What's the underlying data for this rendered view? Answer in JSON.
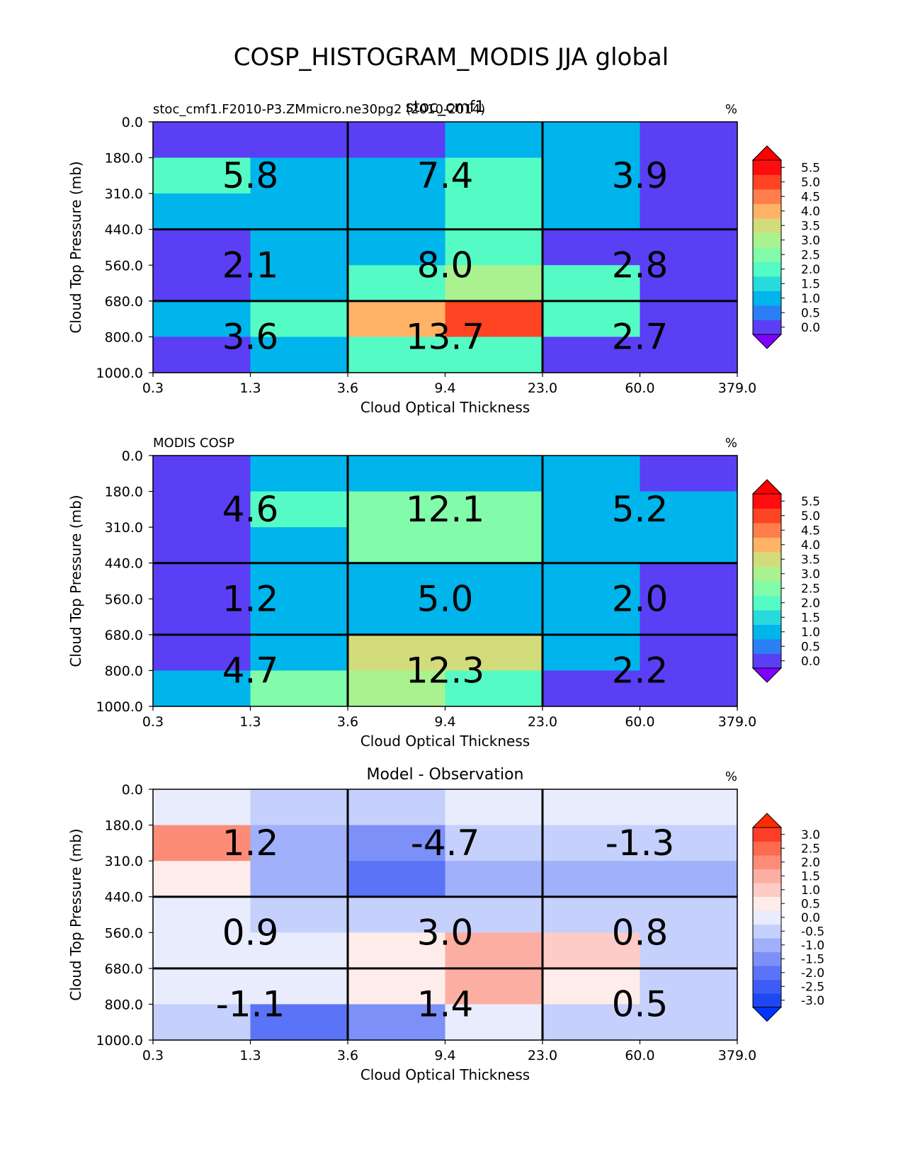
{
  "suptitle": "COSP_HISTOGRAM_MODIS JJA global",
  "chart_data": [
    {
      "type": "heatmap",
      "title_left": "stoc_cmf1.F2010-P3.ZMmicro.ne30pg2 (2010-2014)",
      "title_center": "stoc_cmf1",
      "title_right": "%",
      "xlabel": "Cloud Optical Thickness",
      "ylabel": "Cloud Top Pressure (mb)",
      "x_tick_labels": [
        "0.3",
        "1.3",
        "3.6",
        "9.4",
        "23.0",
        "60.0",
        "379.0"
      ],
      "y_tick_labels": [
        "0.0",
        "180.0",
        "310.0",
        "440.0",
        "560.0",
        "680.0",
        "800.0",
        "1000.0"
      ],
      "colorbar": {
        "ticks": [
          "0.0",
          "0.5",
          "1.0",
          "1.5",
          "2.0",
          "2.5",
          "3.0",
          "3.5",
          "4.0",
          "4.5",
          "5.0",
          "5.5"
        ],
        "colors": [
          "#5a3ff5",
          "#2c7ef5",
          "#00b4ec",
          "#28dadb",
          "#55fbc4",
          "#82fcaa",
          "#aaf290",
          "#d3dc7a",
          "#feb367",
          "#ff7e4c",
          "#ff4424",
          "#ff0d0e"
        ],
        "under_color": "#8000ff",
        "over_color": "#ff0000"
      },
      "cell_values": [
        [
          0.2,
          0.2,
          0.2,
          1.0,
          1.0,
          0.2
        ],
        [
          2.4,
          1.4,
          1.4,
          2.0,
          1.4,
          0.2
        ],
        [
          1.0,
          1.0,
          1.4,
          2.4,
          1.0,
          0.2
        ],
        [
          0.2,
          1.0,
          1.4,
          2.0,
          0.2,
          0.2
        ],
        [
          0.2,
          1.0,
          2.4,
          3.1,
          2.0,
          0.2
        ],
        [
          1.0,
          2.0,
          4.2,
          5.2,
          2.4,
          0.2
        ],
        [
          0.2,
          1.4,
          2.4,
          2.0,
          0.2,
          0.2
        ]
      ],
      "box_values": [
        [
          "5.8",
          "7.4",
          "3.9"
        ],
        [
          "2.1",
          "8.0",
          "2.8"
        ],
        [
          "3.6",
          "13.7",
          "2.7"
        ]
      ]
    },
    {
      "type": "heatmap",
      "title_left": "MODIS COSP",
      "title_center": "",
      "title_right": "%",
      "xlabel": "Cloud Optical Thickness",
      "ylabel": "Cloud Top Pressure (mb)",
      "x_tick_labels": [
        "0.3",
        "1.3",
        "3.6",
        "9.4",
        "23.0",
        "60.0",
        "379.0"
      ],
      "y_tick_labels": [
        "0.0",
        "180.0",
        "310.0",
        "440.0",
        "560.0",
        "680.0",
        "800.0",
        "1000.0"
      ],
      "colorbar": {
        "ticks": [
          "0.0",
          "0.5",
          "1.0",
          "1.5",
          "2.0",
          "2.5",
          "3.0",
          "3.5",
          "4.0",
          "4.5",
          "5.0",
          "5.5"
        ],
        "colors": [
          "#5a3ff5",
          "#2c7ef5",
          "#00b4ec",
          "#28dadb",
          "#55fbc4",
          "#82fcaa",
          "#aaf290",
          "#d3dc7a",
          "#feb367",
          "#ff7e4c",
          "#ff4424",
          "#ff0d0e"
        ],
        "under_color": "#8000ff",
        "over_color": "#ff0000"
      },
      "cell_values": [
        [
          0.2,
          1.0,
          1.0,
          1.0,
          1.0,
          0.2
        ],
        [
          0.2,
          2.0,
          2.6,
          2.6,
          1.4,
          1.0
        ],
        [
          0.2,
          1.4,
          2.6,
          2.6,
          1.4,
          1.0
        ],
        [
          0.2,
          1.0,
          1.4,
          1.4,
          1.0,
          0.2
        ],
        [
          0.2,
          1.0,
          1.4,
          1.4,
          1.0,
          0.2
        ],
        [
          0.2,
          1.4,
          3.6,
          3.6,
          1.0,
          0.2
        ],
        [
          1.0,
          2.6,
          3.1,
          2.0,
          0.2,
          0.2
        ]
      ],
      "box_values": [
        [
          "4.6",
          "12.1",
          "5.2"
        ],
        [
          "1.2",
          "5.0",
          "2.0"
        ],
        [
          "4.7",
          "12.3",
          "2.2"
        ]
      ]
    },
    {
      "type": "heatmap",
      "title_left": "",
      "title_center": "Model - Observation",
      "title_right": "%",
      "xlabel": "Cloud Optical Thickness",
      "ylabel": "Cloud Top Pressure (mb)",
      "x_tick_labels": [
        "0.3",
        "1.3",
        "3.6",
        "9.4",
        "23.0",
        "60.0",
        "379.0"
      ],
      "y_tick_labels": [
        "0.0",
        "180.0",
        "310.0",
        "440.0",
        "560.0",
        "680.0",
        "800.0",
        "1000.0"
      ],
      "colorbar": {
        "ticks": [
          "-3.0",
          "-2.5",
          "-2.0",
          "-1.5",
          "-1.0",
          "-0.5",
          "0.0",
          "0.5",
          "1.0",
          "1.5",
          "2.0",
          "2.5",
          "3.0"
        ],
        "colors": [
          "#1e48f4",
          "#3e5cf5",
          "#5b73f6",
          "#7c90f8",
          "#a0b0fa",
          "#c5d0fc",
          "#e8ecfd",
          "#fdecea",
          "#fdccc6",
          "#fdaea3",
          "#fc8c78",
          "#fc6a4f",
          "#fc3e26"
        ],
        "under_color": "#0033ff",
        "over_color": "#ff2a00"
      },
      "cell_values": [
        [
          0.2,
          -0.2,
          -0.2,
          0.2,
          0.2,
          0.2
        ],
        [
          2.2,
          -0.7,
          -1.2,
          -0.2,
          -0.2,
          -0.2
        ],
        [
          0.7,
          -0.7,
          -1.7,
          -0.7,
          -0.7,
          -0.7
        ],
        [
          0.2,
          -0.2,
          -0.2,
          -0.2,
          -0.2,
          -0.2
        ],
        [
          0.2,
          0.2,
          0.7,
          1.7,
          1.2,
          -0.2
        ],
        [
          0.2,
          0.2,
          0.7,
          1.7,
          0.7,
          -0.2
        ],
        [
          -0.2,
          -1.7,
          -1.2,
          0.2,
          -0.2,
          -0.2
        ]
      ],
      "box_values": [
        [
          "1.2",
          "-4.7",
          "-1.3"
        ],
        [
          "0.9",
          "3.0",
          "0.8"
        ],
        [
          "-1.1",
          "1.4",
          "0.5"
        ]
      ]
    }
  ]
}
